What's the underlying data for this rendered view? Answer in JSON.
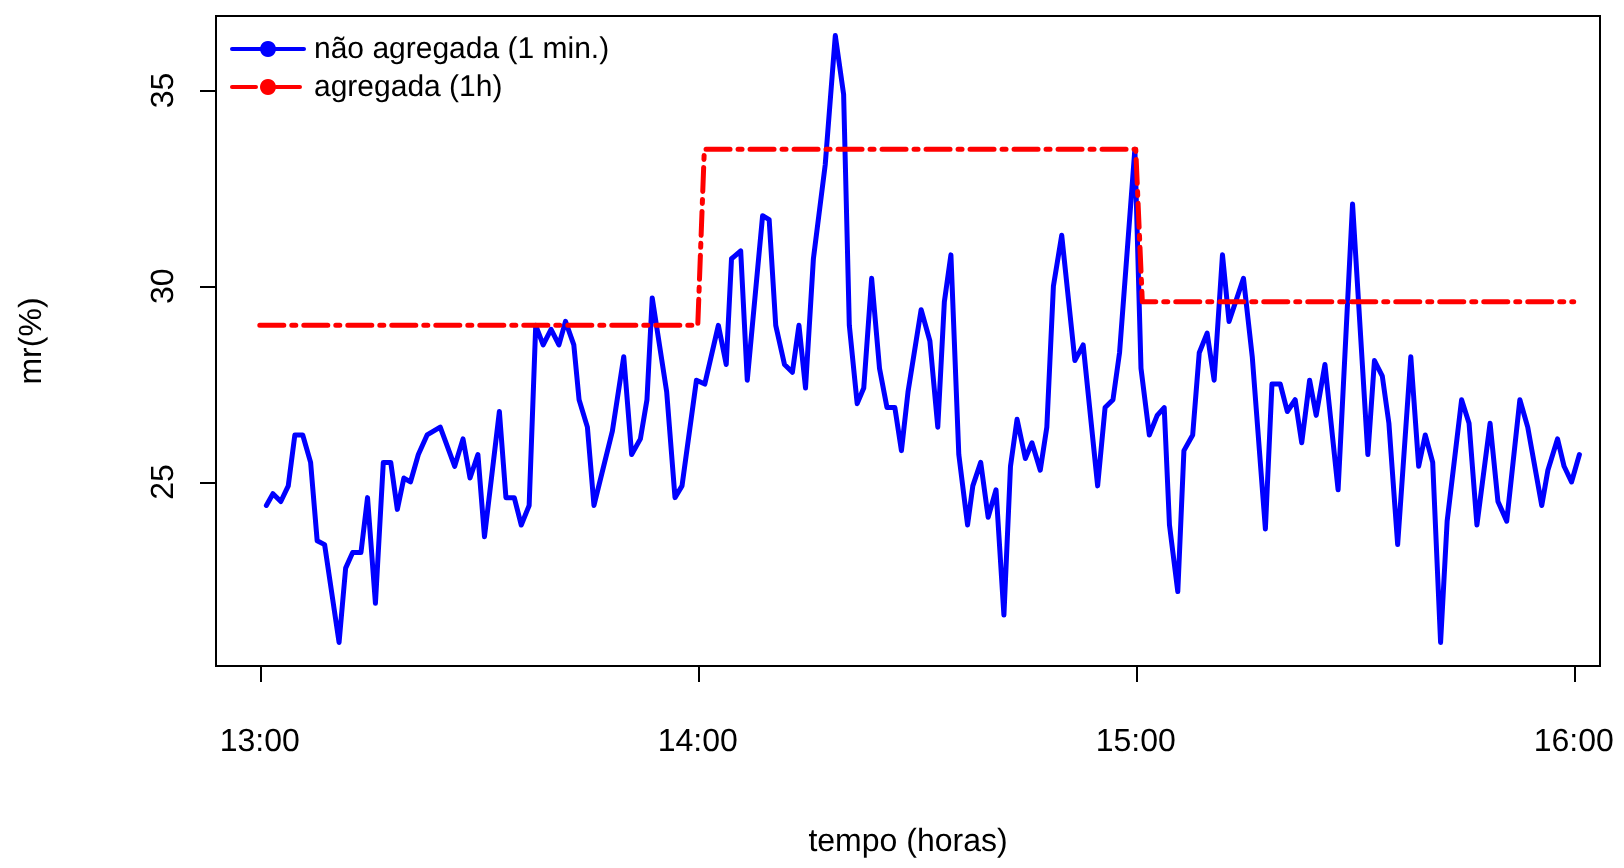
{
  "chart_data": {
    "type": "line",
    "xlabel": "tempo (horas)",
    "ylabel": "mr(%)",
    "xlim": [
      12.9,
      16.06
    ],
    "ylim": [
      20.3,
      36.9
    ],
    "xticks": [
      {
        "value": 13,
        "label": "13:00"
      },
      {
        "value": 14,
        "label": "14:00"
      },
      {
        "value": 15,
        "label": "15:00"
      },
      {
        "value": 16,
        "label": "16:00"
      }
    ],
    "yticks": [
      25,
      30,
      35
    ],
    "grid": false,
    "legend": "top left",
    "marker": "none",
    "series": [
      {
        "name": "não agregada (1 min.)",
        "color": "#0000ff",
        "line_style": "solid",
        "x": [
          13.015,
          13.03,
          13.048,
          13.065,
          13.08,
          13.098,
          13.116,
          13.131,
          13.148,
          13.181,
          13.196,
          13.212,
          13.231,
          13.246,
          13.264,
          13.282,
          13.299,
          13.314,
          13.329,
          13.344,
          13.362,
          13.382,
          13.412,
          13.445,
          13.464,
          13.48,
          13.498,
          13.513,
          13.547,
          13.562,
          13.581,
          13.597,
          13.615,
          13.63,
          13.647,
          13.665,
          13.683,
          13.698,
          13.717,
          13.729,
          13.748,
          13.763,
          13.805,
          13.831,
          13.849,
          13.869,
          13.884,
          13.896,
          13.929,
          13.948,
          13.964,
          13.997,
          14.016,
          14.047,
          14.065,
          14.077,
          14.098,
          14.113,
          14.148,
          14.163,
          14.178,
          14.198,
          14.216,
          14.231,
          14.246,
          14.264,
          14.291,
          14.314,
          14.333,
          14.346,
          14.364,
          14.379,
          14.397,
          14.415,
          14.432,
          14.45,
          14.465,
          14.48,
          14.51,
          14.53,
          14.548,
          14.563,
          14.578,
          14.596,
          14.616,
          14.628,
          14.646,
          14.663,
          14.681,
          14.699,
          14.714,
          14.729,
          14.748,
          14.763,
          14.782,
          14.797,
          14.812,
          14.831,
          14.861,
          14.88,
          14.913,
          14.93,
          14.948,
          14.963,
          14.998,
          15.012,
          15.031,
          15.049,
          15.065,
          15.077,
          15.096,
          15.11,
          15.13,
          15.145,
          15.163,
          15.179,
          15.198,
          15.213,
          15.246,
          15.266,
          15.296,
          15.311,
          15.33,
          15.346,
          15.364,
          15.379,
          15.397,
          15.412,
          15.432,
          15.462,
          15.495,
          15.53,
          15.545,
          15.563,
          15.578,
          15.598,
          15.628,
          15.646,
          15.661,
          15.678,
          15.696,
          15.711,
          15.744,
          15.761,
          15.779,
          15.809,
          15.827,
          15.847,
          15.877,
          15.895,
          15.927,
          15.941,
          15.963,
          15.978,
          15.995,
          16.013
        ],
        "values": [
          24.4,
          24.7,
          24.5,
          24.9,
          26.2,
          26.2,
          25.5,
          23.5,
          23.4,
          20.9,
          22.8,
          23.2,
          23.2,
          24.6,
          21.9,
          25.5,
          25.5,
          24.3,
          25.1,
          25.0,
          25.7,
          26.2,
          26.4,
          25.4,
          26.1,
          25.1,
          25.7,
          23.6,
          26.8,
          24.6,
          24.6,
          23.9,
          24.4,
          29.0,
          28.5,
          28.9,
          28.5,
          29.1,
          28.5,
          27.1,
          26.4,
          24.4,
          26.3,
          28.2,
          25.7,
          26.1,
          27.1,
          29.7,
          27.3,
          24.6,
          24.9,
          27.6,
          27.5,
          29.0,
          28.0,
          30.7,
          30.9,
          27.6,
          31.8,
          31.7,
          29.0,
          28.0,
          27.8,
          29.0,
          27.4,
          30.7,
          33.1,
          36.4,
          34.9,
          29.0,
          27.0,
          27.4,
          30.2,
          27.9,
          26.9,
          26.9,
          25.8,
          27.3,
          29.4,
          28.6,
          26.4,
          29.6,
          30.8,
          25.7,
          23.9,
          24.9,
          25.5,
          24.1,
          24.8,
          21.6,
          25.4,
          26.6,
          25.6,
          26.0,
          25.3,
          26.4,
          30.0,
          31.3,
          28.1,
          28.5,
          24.9,
          26.9,
          27.1,
          28.3,
          33.5,
          27.9,
          26.2,
          26.7,
          26.9,
          23.9,
          22.2,
          25.8,
          26.2,
          28.3,
          28.8,
          27.6,
          30.8,
          29.1,
          30.2,
          28.2,
          23.8,
          27.5,
          27.5,
          26.8,
          27.1,
          26.0,
          27.6,
          26.7,
          28.0,
          24.8,
          32.1,
          25.7,
          28.1,
          27.7,
          26.5,
          23.4,
          28.2,
          25.4,
          26.2,
          25.5,
          20.9,
          24.0,
          27.1,
          26.5,
          23.9,
          26.5,
          24.5,
          24.0,
          27.1,
          26.4,
          24.4,
          25.3,
          26.1,
          25.4,
          25.0,
          25.7
        ]
      },
      {
        "name": "agregada (1h)",
        "color": "#ff0000",
        "line_style": "dashed",
        "x": [
          13,
          14,
          14.015,
          15,
          15.015,
          16
        ],
        "values": [
          29.0,
          29.0,
          33.5,
          33.5,
          29.6,
          29.6
        ]
      }
    ]
  }
}
